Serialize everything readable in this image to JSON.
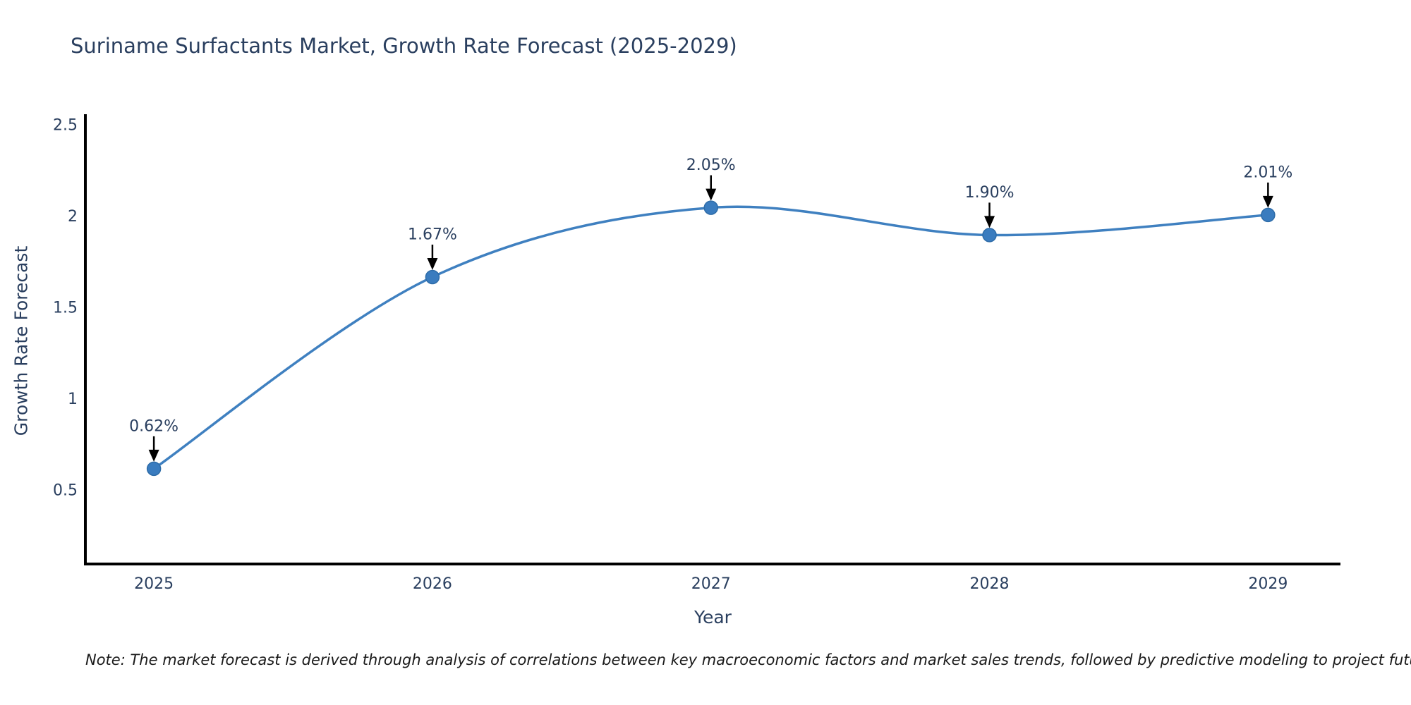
{
  "title": "Suriname Surfactants Market, Growth Rate Forecast (2025-2029)",
  "footnote": "Note: The market forecast is derived through analysis of correlations between key macroeconomic factors and market sales trends, followed by predictive modeling to project future sales",
  "chart_data": {
    "type": "line",
    "title": "Suriname Surfactants Market, Growth Rate Forecast (2025-2029)",
    "xlabel": "Year",
    "ylabel": "Growth Rate Forecast",
    "x": [
      2025,
      2026,
      2027,
      2028,
      2029
    ],
    "series": [
      {
        "name": "Growth Rate Forecast",
        "values": [
          0.62,
          1.67,
          2.05,
          1.9,
          2.01
        ],
        "point_labels": [
          "0.62%",
          "1.67%",
          "2.05%",
          "1.90%",
          "2.01%"
        ]
      }
    ],
    "y_ticks": [
      "0.5",
      "1",
      "1.5",
      "2",
      "2.5"
    ],
    "y_tick_values": [
      0.5,
      1,
      1.5,
      2,
      2.5
    ],
    "x_tick_labels": [
      "2025",
      "2026",
      "2027",
      "2028",
      "2029"
    ],
    "ylim": [
      0.098,
      2.562
    ],
    "xlim": [
      2024.754,
      2029.26
    ],
    "grid": false,
    "legend_position": "none",
    "line_shape": "spline",
    "annotations_have_arrows": true,
    "colors": {
      "line": "#3f80c0",
      "marker_fill": "#3a7cbf",
      "marker_edge": "#2e6ca8",
      "axis": "#000000",
      "arrow": "#000000",
      "text": "#2a3f5f",
      "note_text": "#1a1a1a",
      "background": "#ffffff"
    }
  }
}
